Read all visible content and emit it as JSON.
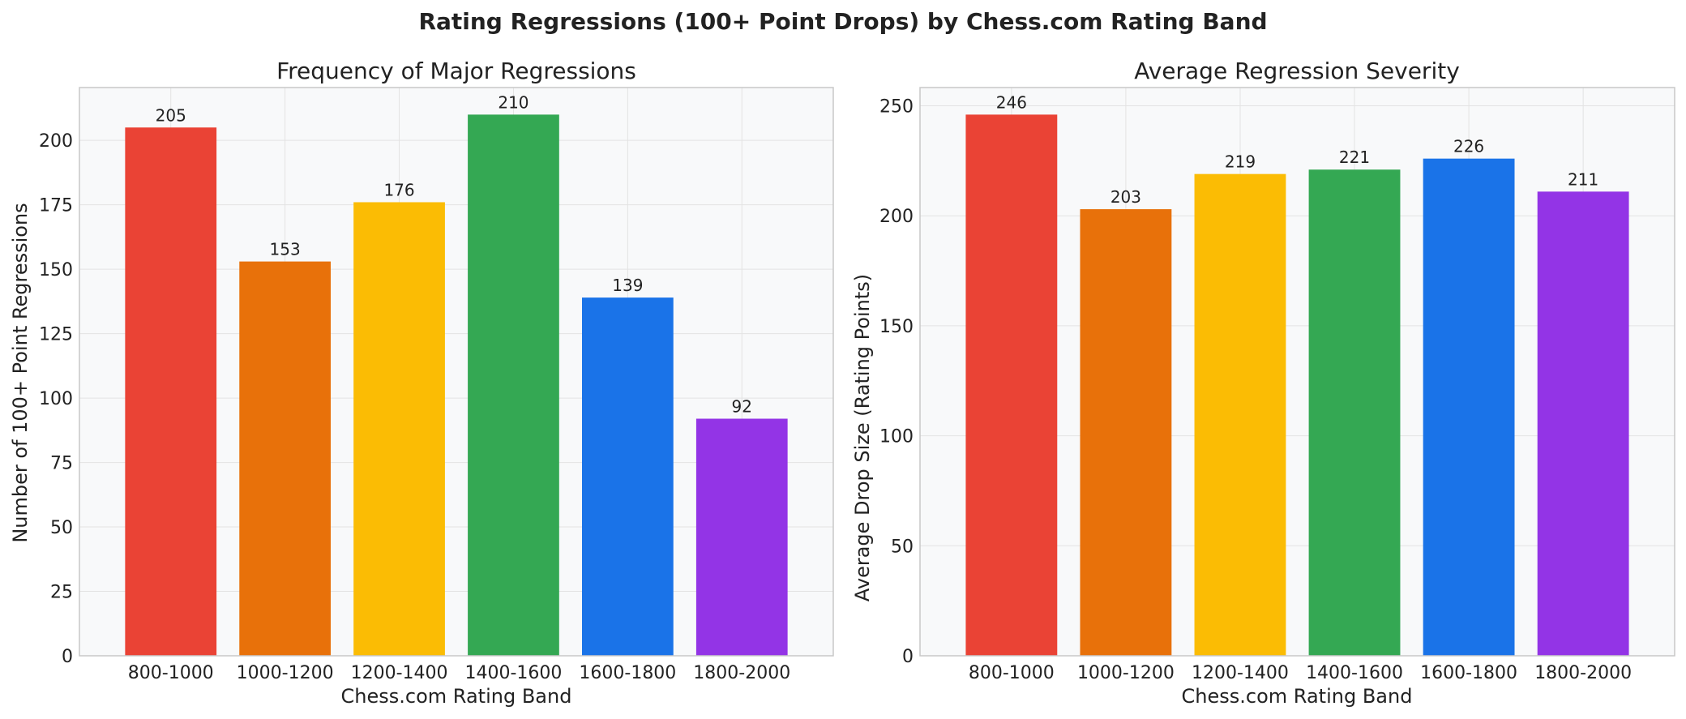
{
  "figure": {
    "title": "Rating Regressions (100+ Point Drops) by Chess.com Rating Band"
  },
  "chart_data": [
    {
      "type": "bar",
      "title": "Frequency of Major Regressions",
      "xlabel": "Chess.com Rating Band",
      "ylabel": "Number of 100+ Point Regressions",
      "categories": [
        "800-1000",
        "1000-1200",
        "1200-1400",
        "1400-1600",
        "1600-1800",
        "1800-2000"
      ],
      "values": [
        205,
        153,
        176,
        210,
        139,
        92
      ],
      "data_labels": [
        "205",
        "153",
        "176",
        "210",
        "139",
        "92"
      ],
      "colors": [
        "#ea4335",
        "#e8710a",
        "#fbbc04",
        "#34a853",
        "#1a73e8",
        "#9334e6"
      ],
      "ylim": [
        0,
        220.5
      ],
      "yticks": [
        0,
        25,
        50,
        75,
        100,
        125,
        150,
        175,
        200
      ],
      "grid": true,
      "legend": "none"
    },
    {
      "type": "bar",
      "title": "Average Regression Severity",
      "xlabel": "Chess.com Rating Band",
      "ylabel": "Average Drop Size (Rating Points)",
      "categories": [
        "800-1000",
        "1000-1200",
        "1200-1400",
        "1400-1600",
        "1600-1800",
        "1800-2000"
      ],
      "values": [
        246,
        203,
        219,
        221,
        226,
        211
      ],
      "data_labels": [
        "246",
        "203",
        "219",
        "221",
        "226",
        "211"
      ],
      "colors": [
        "#ea4335",
        "#e8710a",
        "#fbbc04",
        "#34a853",
        "#1a73e8",
        "#9334e6"
      ],
      "ylim": [
        0,
        258.3
      ],
      "yticks": [
        0,
        50,
        100,
        150,
        200,
        250
      ],
      "grid": true,
      "legend": "none"
    }
  ]
}
